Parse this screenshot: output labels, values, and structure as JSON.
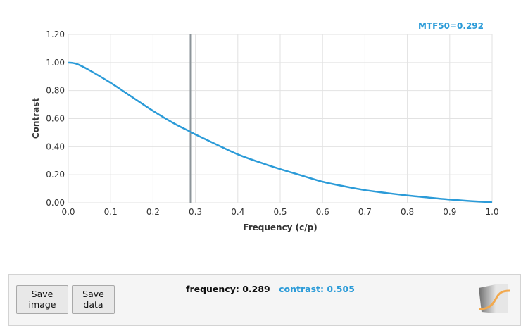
{
  "colors": {
    "curve": "#2b9bd8",
    "marker": "#8c9499",
    "grid": "#e2e2e2",
    "accent": "#2b9bd8"
  },
  "annotation": {
    "mtf50_label": "MTF50=0.292"
  },
  "readout": {
    "frequency_text": "frequency: 0.289",
    "contrast_text": "contrast: 0.505"
  },
  "buttons": {
    "save_image": "Save\nimage",
    "save_data": "Save\ndata"
  },
  "icons": {
    "app_logo": "mtf-curve-logo-icon"
  },
  "chart_data": {
    "type": "line",
    "xlabel": "Frequency (c/p)",
    "ylabel": "Contrast",
    "xlim": [
      0,
      1
    ],
    "ylim": [
      0,
      1.2
    ],
    "x_ticks": [
      "0.0",
      "0.1",
      "0.2",
      "0.3",
      "0.4",
      "0.5",
      "0.6",
      "0.7",
      "0.8",
      "0.9",
      "1.0"
    ],
    "y_ticks": [
      "0.00",
      "0.20",
      "0.40",
      "0.60",
      "0.80",
      "1.00",
      "1.20"
    ],
    "grid": true,
    "cursor_x": 0.289,
    "series": [
      {
        "x": [
          0,
          0.02,
          0.05,
          0.1,
          0.15,
          0.2,
          0.25,
          0.289,
          0.3,
          0.35,
          0.4,
          0.45,
          0.5,
          0.55,
          0.6,
          0.65,
          0.7,
          0.75,
          0.8,
          0.85,
          0.9,
          0.95,
          1.0
        ],
        "y": [
          1.0,
          0.99,
          0.945,
          0.855,
          0.755,
          0.655,
          0.565,
          0.505,
          0.487,
          0.415,
          0.345,
          0.29,
          0.24,
          0.195,
          0.15,
          0.118,
          0.09,
          0.07,
          0.052,
          0.037,
          0.023,
          0.012,
          0.003
        ]
      }
    ]
  }
}
